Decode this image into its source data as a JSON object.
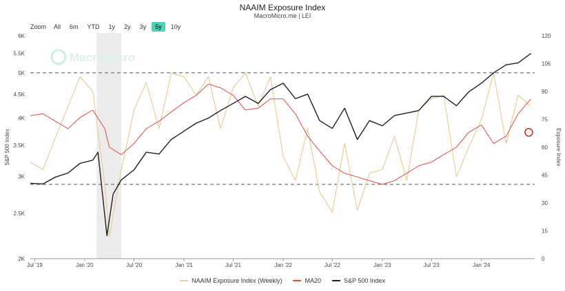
{
  "header": {
    "title": "NAAIM Exposure Index",
    "subtitle": "MacroMicro.me | LEI"
  },
  "zoom": {
    "label": "Zoom",
    "buttons": [
      "All",
      "6m",
      "YTD",
      "1y",
      "2y",
      "3y",
      "5y",
      "10y"
    ],
    "active": "5y"
  },
  "watermark": "MacroMicro",
  "colors": {
    "naaim": "#e8d29a",
    "ma20": "#e04848",
    "sp500": "#1c1c26",
    "recession": "#ececec",
    "marker": "#d62020"
  },
  "legend": [
    {
      "label": "NAAIM Exposure Index (Weekly)",
      "color": "#e8d29a"
    },
    {
      "label": "MA20",
      "color": "#e04848"
    },
    {
      "label": "S&P 500 Index",
      "color": "#1c1c26"
    }
  ],
  "chart_data": {
    "type": "line",
    "title": "NAAIM Exposure Index",
    "x_ticks": [
      "Jul '19",
      "Jan '20",
      "Jul '20",
      "Jan '21",
      "Jul '21",
      "Jan '22",
      "Jul '22",
      "Jan '23",
      "Jul '23",
      "Jan '24"
    ],
    "x_range": [
      "2019-06-15",
      "2024-07-15"
    ],
    "left_axis": {
      "label": "S&P 500 Index",
      "scale": "log",
      "range": [
        2000,
        6000
      ],
      "ticks": [
        "2K",
        "2.5K",
        "3K",
        "3.5K",
        "4K",
        "4.5K",
        "5K",
        "5.5K",
        "6K"
      ]
    },
    "right_axis": {
      "label": "Exposure Index",
      "range": [
        0,
        120
      ],
      "ticks": [
        0,
        15,
        30,
        45,
        60,
        75,
        90,
        105,
        120
      ]
    },
    "reference_lines": {
      "sp500_level": 5000,
      "exposure_level": 40
    },
    "shaded_period": [
      "2020-02-15",
      "2020-05-15"
    ],
    "series": [
      {
        "name": "NAAIM Exposure Index (Weekly)",
        "axis": "right",
        "x": [
          "2019-06-15",
          "2019-08-01",
          "2019-09-15",
          "2019-11-01",
          "2019-12-15",
          "2020-01-31",
          "2020-03-15",
          "2020-04-01",
          "2020-05-15",
          "2020-07-01",
          "2020-08-15",
          "2020-10-01",
          "2020-11-15",
          "2021-01-01",
          "2021-02-15",
          "2021-04-01",
          "2021-05-15",
          "2021-07-01",
          "2021-08-15",
          "2021-10-01",
          "2021-11-15",
          "2022-01-01",
          "2022-02-15",
          "2022-04-01",
          "2022-05-15",
          "2022-07-01",
          "2022-08-15",
          "2022-10-01",
          "2022-11-15",
          "2023-01-01",
          "2023-02-15",
          "2023-04-01",
          "2023-05-15",
          "2023-07-01",
          "2023-08-15",
          "2023-10-01",
          "2023-11-15",
          "2024-01-01",
          "2024-02-15",
          "2024-04-01",
          "2024-05-15",
          "2024-07-01"
        ],
        "values": [
          52,
          48,
          65,
          82,
          98,
          90,
          40,
          12,
          48,
          80,
          95,
          70,
          100,
          98,
          88,
          98,
          70,
          92,
          100,
          82,
          98,
          55,
          42,
          70,
          36,
          25,
          62,
          26,
          46,
          48,
          66,
          42,
          80,
          86,
          88,
          44,
          60,
          75,
          100,
          62,
          88,
          82
        ]
      },
      {
        "name": "MA20",
        "axis": "right",
        "x": [
          "2019-06-15",
          "2019-08-01",
          "2019-09-15",
          "2019-11-01",
          "2019-12-15",
          "2020-01-31",
          "2020-03-15",
          "2020-04-01",
          "2020-05-15",
          "2020-07-01",
          "2020-08-15",
          "2020-10-01",
          "2020-11-15",
          "2021-01-01",
          "2021-02-15",
          "2021-04-01",
          "2021-05-15",
          "2021-07-01",
          "2021-08-15",
          "2021-10-01",
          "2021-11-15",
          "2022-01-01",
          "2022-02-15",
          "2022-04-01",
          "2022-05-15",
          "2022-07-01",
          "2022-08-15",
          "2022-10-01",
          "2022-11-15",
          "2023-01-01",
          "2023-02-15",
          "2023-04-01",
          "2023-05-15",
          "2023-07-01",
          "2023-08-15",
          "2023-10-01",
          "2023-11-15",
          "2024-01-01",
          "2024-02-15",
          "2024-04-01",
          "2024-05-15",
          "2024-07-01"
        ],
        "values": [
          77,
          78,
          74,
          70,
          76,
          80,
          70,
          60,
          56,
          62,
          70,
          74,
          79,
          84,
          88,
          94,
          92,
          88,
          80,
          81,
          86,
          86,
          78,
          66,
          58,
          50,
          46,
          44,
          42,
          40,
          42,
          46,
          50,
          52,
          56,
          60,
          68,
          72,
          62,
          66,
          78,
          86
        ]
      },
      {
        "name": "S&P 500 Index",
        "axis": "left",
        "x": [
          "2019-06-15",
          "2019-08-01",
          "2019-09-15",
          "2019-11-01",
          "2019-12-15",
          "2020-01-31",
          "2020-02-19",
          "2020-03-23",
          "2020-04-15",
          "2020-05-15",
          "2020-07-01",
          "2020-08-15",
          "2020-10-01",
          "2020-11-15",
          "2021-01-01",
          "2021-02-15",
          "2021-04-01",
          "2021-05-15",
          "2021-07-01",
          "2021-08-15",
          "2021-10-01",
          "2021-11-15",
          "2022-01-01",
          "2022-02-15",
          "2022-04-01",
          "2022-05-15",
          "2022-07-01",
          "2022-08-15",
          "2022-10-01",
          "2022-11-15",
          "2023-01-01",
          "2023-02-15",
          "2023-04-01",
          "2023-05-15",
          "2023-07-01",
          "2023-08-15",
          "2023-10-01",
          "2023-11-15",
          "2024-01-01",
          "2024-02-15",
          "2024-04-01",
          "2024-05-15",
          "2024-07-01"
        ],
        "values": [
          2900,
          2890,
          2990,
          3050,
          3200,
          3250,
          3380,
          2240,
          2750,
          2950,
          3100,
          3380,
          3350,
          3600,
          3750,
          3900,
          4000,
          4150,
          4300,
          4450,
          4300,
          4600,
          4750,
          4400,
          4500,
          3950,
          3800,
          4200,
          3600,
          3950,
          3850,
          4050,
          4100,
          4150,
          4450,
          4450,
          4250,
          4550,
          4750,
          5000,
          5200,
          5250,
          5500
        ]
      }
    ],
    "grid": false,
    "legend_position": "bottom"
  }
}
